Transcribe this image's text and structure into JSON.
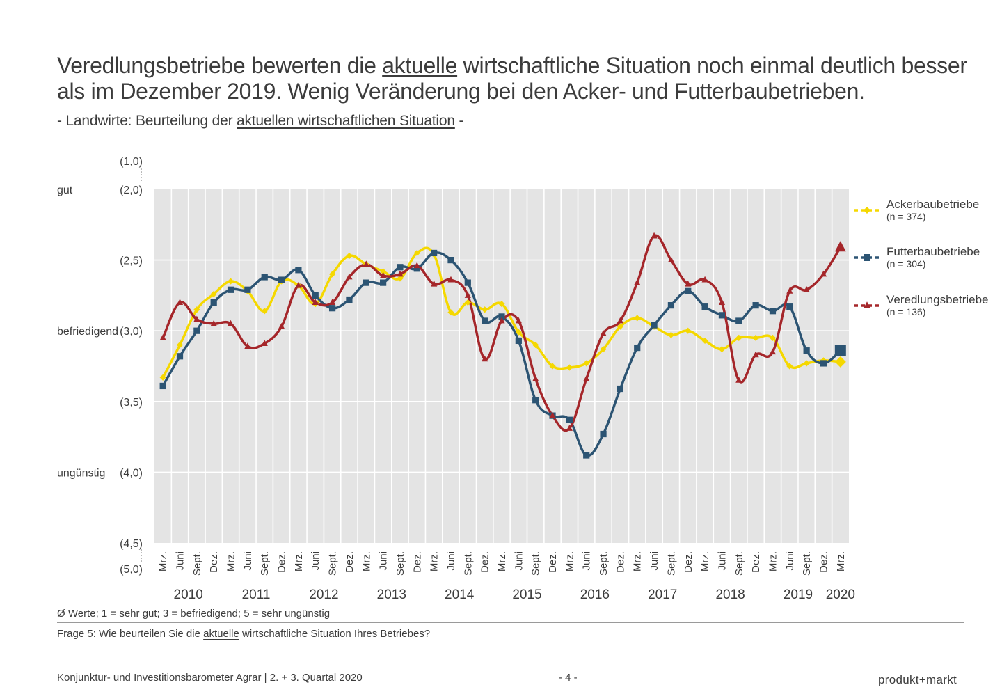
{
  "header": {
    "title_line1_a": "Veredlungsbetriebe bewerten die ",
    "title_line1_u": "aktuelle",
    "title_line1_b": " wirtschaftliche Situation noch einmal deutlich besser",
    "title_line2": "als im Dezember 2019. Wenig Veränderung bei den Acker- und Futterbaubetrieben.",
    "subtitle_a": "- Landwirte: Beurteilung der ",
    "subtitle_u": "aktuellen wirtschaftlichen Situation",
    "subtitle_b": " -"
  },
  "chart_data": {
    "type": "line",
    "title": "",
    "xlabel": "",
    "ylabel": "",
    "ylim": [
      2.0,
      4.5
    ],
    "y_inverted": true,
    "grid": true,
    "legend_position": "right",
    "y_ticks": [
      "(2,0)",
      "(2,5)",
      "(3,0)",
      "(3,5)",
      "(4,0)",
      "(4,5)"
    ],
    "y_extra_labels": {
      "top": "(1,0)",
      "bottom": "(5,0)"
    },
    "y_category_labels": [
      {
        "label": "gut",
        "y": 2.0
      },
      {
        "label": "befriedigend",
        "y": 3.0
      },
      {
        "label": "ungünstig",
        "y": 4.0
      }
    ],
    "categories": [
      "Mrz.",
      "Juni",
      "Sept.",
      "Dez.",
      "Mrz.",
      "Juni",
      "Sept.",
      "Dez.",
      "Mrz.",
      "Juni",
      "Sept.",
      "Dez.",
      "Mrz.",
      "Juni",
      "Sept.",
      "Dez.",
      "Mrz.",
      "Juni",
      "Sept.",
      "Dez.",
      "Mrz.",
      "Juni",
      "Sept.",
      "Dez.",
      "Mrz.",
      "Juni",
      "Sept.",
      "Dez.",
      "Mrz.",
      "Juni",
      "Sept.",
      "Dez.",
      "Mrz.",
      "Juni",
      "Sept.",
      "Dez.",
      "Mrz.",
      "Juni",
      "Sept.",
      "Dez.",
      "Mrz."
    ],
    "years": [
      {
        "label": "2010",
        "start": 0,
        "end": 3
      },
      {
        "label": "2011",
        "start": 4,
        "end": 7
      },
      {
        "label": "2012",
        "start": 8,
        "end": 11
      },
      {
        "label": "2013",
        "start": 12,
        "end": 15
      },
      {
        "label": "2014",
        "start": 16,
        "end": 19
      },
      {
        "label": "2015",
        "start": 20,
        "end": 23
      },
      {
        "label": "2016",
        "start": 24,
        "end": 27
      },
      {
        "label": "2017",
        "start": 28,
        "end": 31
      },
      {
        "label": "2018",
        "start": 32,
        "end": 35
      },
      {
        "label": "2019",
        "start": 36,
        "end": 39
      },
      {
        "label": "2020",
        "start": 40,
        "end": 40
      }
    ],
    "series": [
      {
        "name": "Ackerbaubetriebe",
        "n_label": "(n = 374)",
        "color": "#f5d800",
        "marker": "diamond",
        "values": [
          3.33,
          3.1,
          2.85,
          2.74,
          2.65,
          2.72,
          2.86,
          2.65,
          2.68,
          2.81,
          2.6,
          2.47,
          2.53,
          2.58,
          2.63,
          2.45,
          2.46,
          2.87,
          2.8,
          2.85,
          2.81,
          3.01,
          3.1,
          3.25,
          3.26,
          3.23,
          3.13,
          2.97,
          2.91,
          2.97,
          3.03,
          3.0,
          3.07,
          3.13,
          3.05,
          3.05,
          3.05,
          3.25,
          3.23,
          3.21,
          3.22
        ]
      },
      {
        "name": "Futterbaubetriebe",
        "n_label": "(n = 304)",
        "color": "#2c5473",
        "marker": "square",
        "values": [
          3.39,
          3.18,
          3.0,
          2.8,
          2.71,
          2.71,
          2.62,
          2.64,
          2.57,
          2.75,
          2.84,
          2.78,
          2.66,
          2.66,
          2.55,
          2.56,
          2.45,
          2.5,
          2.66,
          2.93,
          2.9,
          3.07,
          3.49,
          3.6,
          3.63,
          3.88,
          3.73,
          3.41,
          3.12,
          2.96,
          2.82,
          2.72,
          2.83,
          2.89,
          2.93,
          2.82,
          2.86,
          2.83,
          3.14,
          3.23,
          3.14
        ]
      },
      {
        "name": "Veredlungsbetriebe",
        "n_label": "(n = 136)",
        "color": "#a5262a",
        "marker": "triangle",
        "values": [
          3.05,
          2.8,
          2.92,
          2.95,
          2.95,
          3.11,
          3.09,
          2.97,
          2.68,
          2.8,
          2.8,
          2.62,
          2.53,
          2.61,
          2.6,
          2.54,
          2.67,
          2.64,
          2.75,
          3.2,
          2.93,
          2.93,
          3.34,
          3.6,
          3.69,
          3.34,
          3.02,
          2.93,
          2.66,
          2.33,
          2.5,
          2.67,
          2.64,
          2.8,
          3.35,
          3.17,
          3.15,
          2.72,
          2.71,
          2.6,
          2.41
        ]
      }
    ]
  },
  "footnote": "Ø Werte; 1 = sehr gut; 3 = befriedigend; 5 = sehr ungünstig",
  "question": {
    "a": "Frage 5: Wie beurteilen Sie die ",
    "u": "aktuelle",
    "b": " wirtschaftliche Situation Ihres Betriebes?"
  },
  "footer": {
    "left": "Konjunktur- und Investitionsbarometer Agrar | 2. + 3. Quartal 2020",
    "page": "- 4 -",
    "logo": "produkt+markt"
  }
}
